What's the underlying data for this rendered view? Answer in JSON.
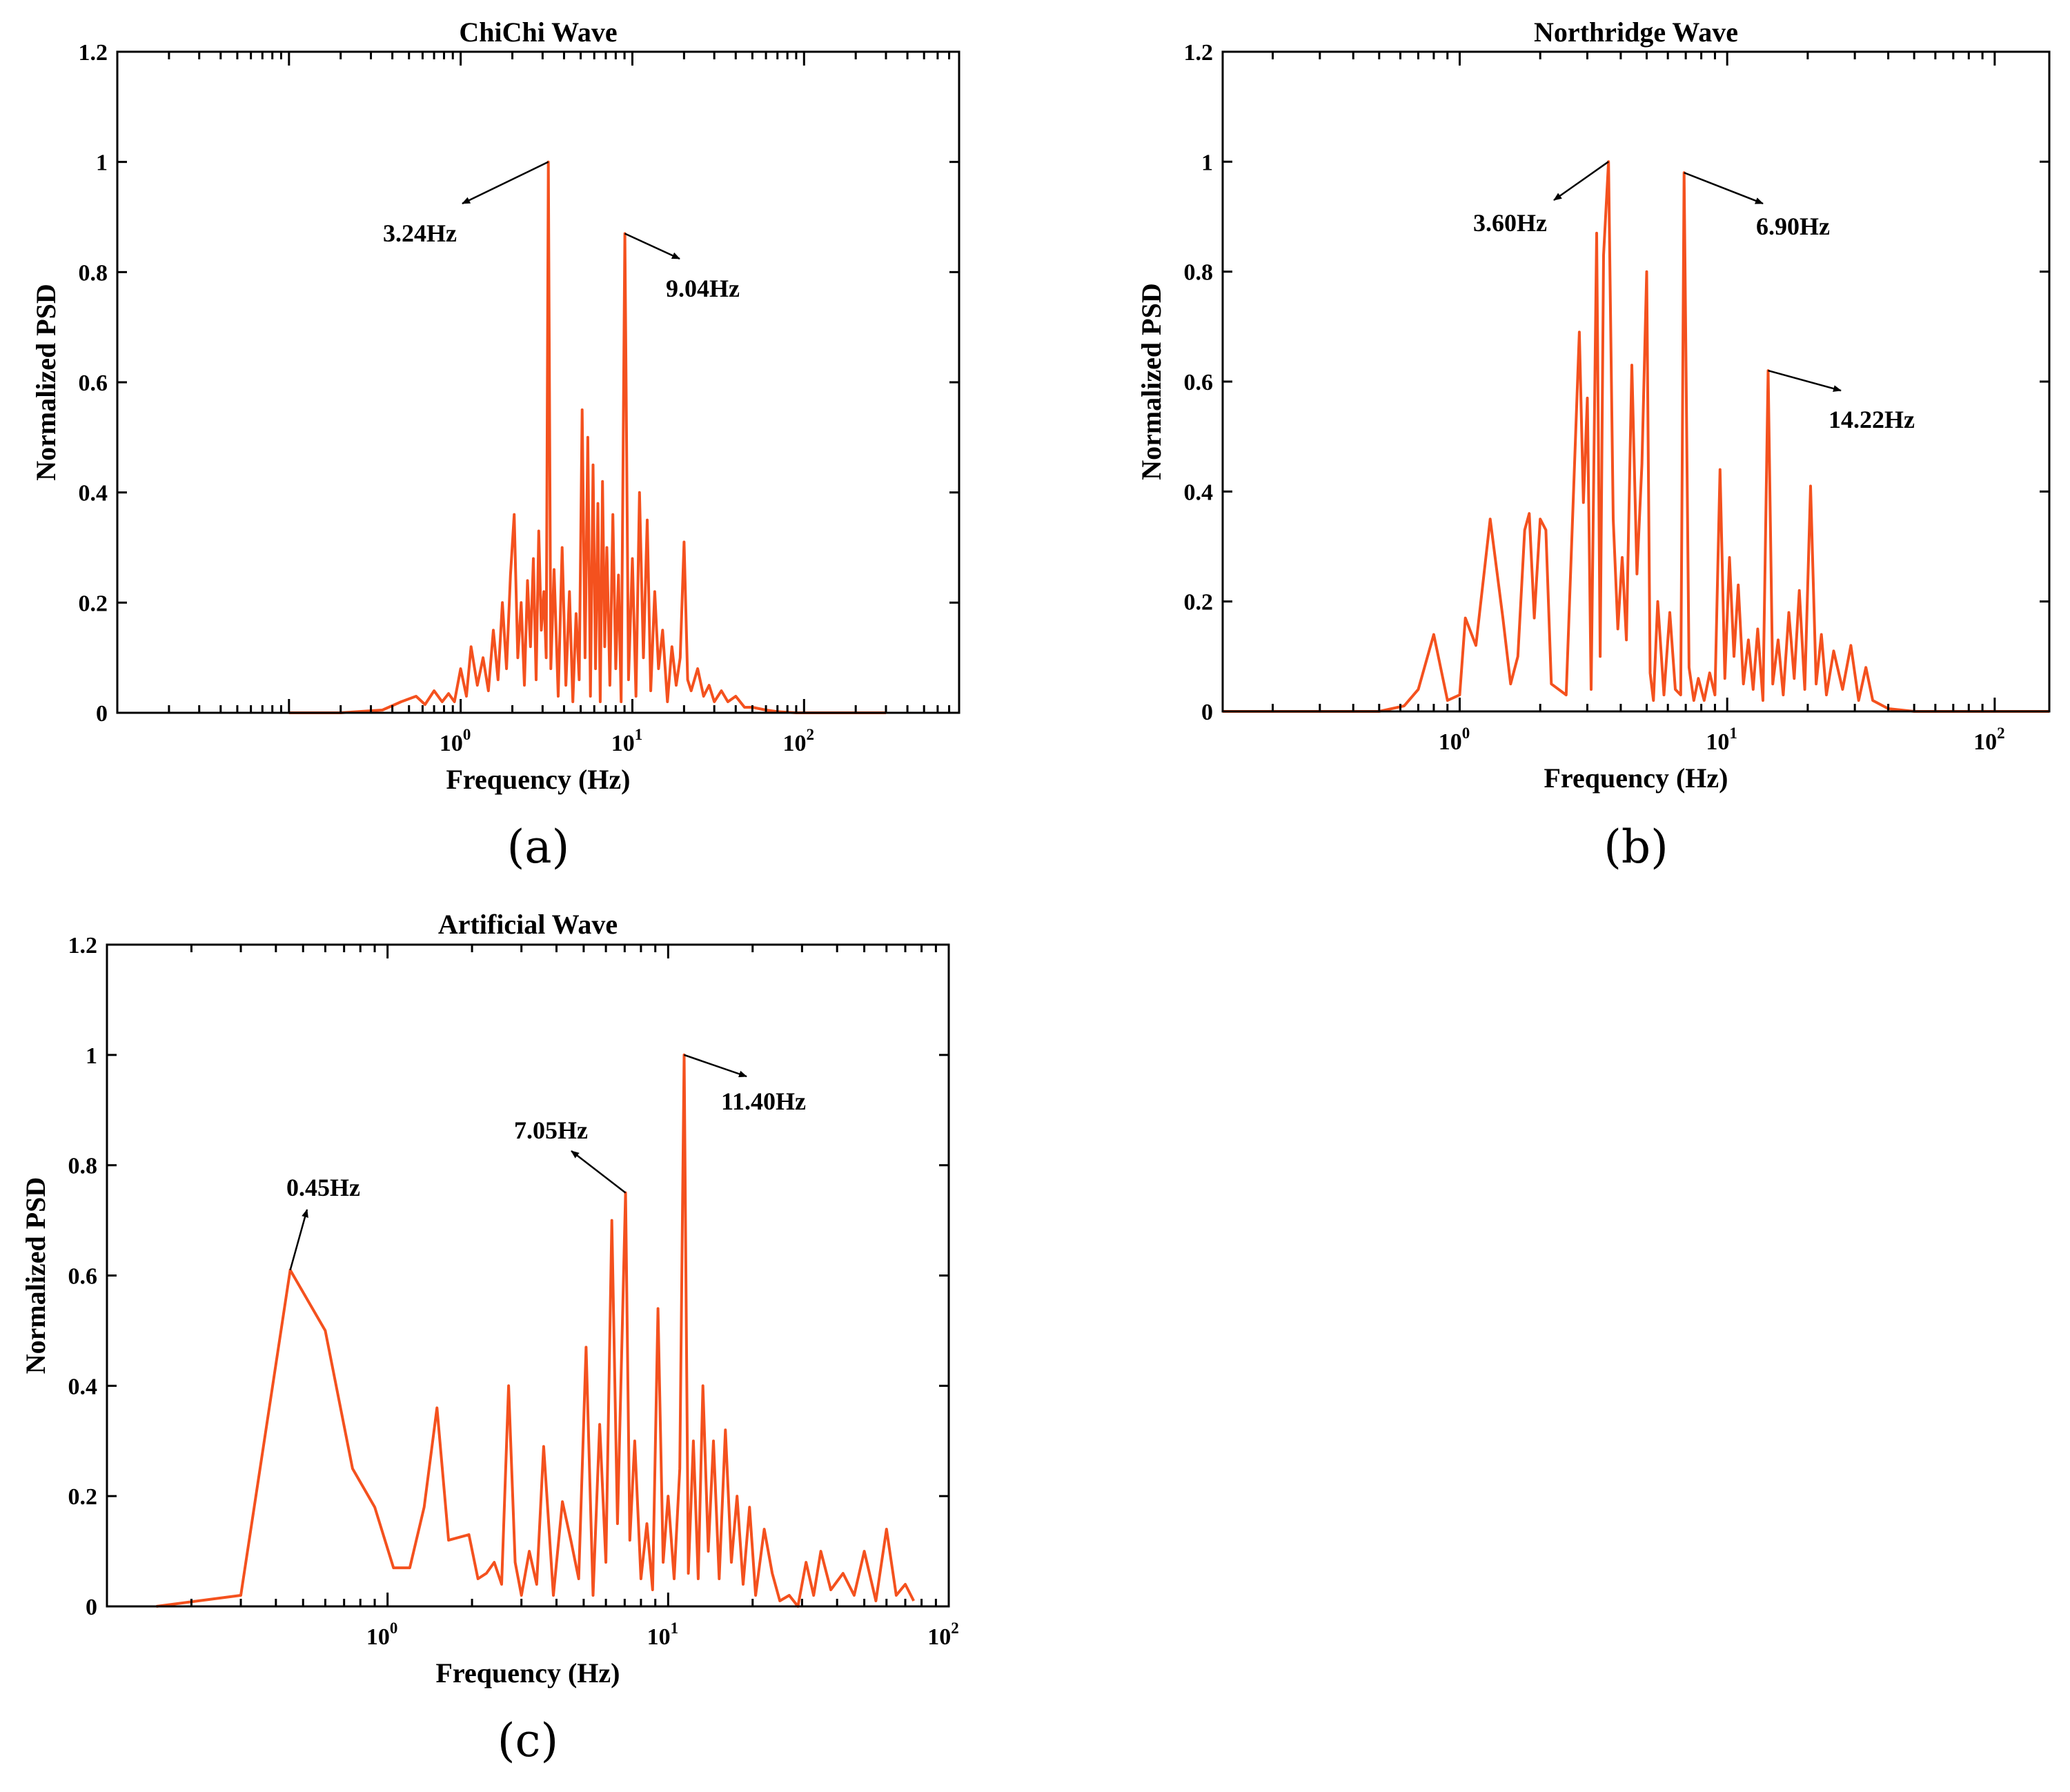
{
  "colors": {
    "series": "#F4511E",
    "axis": "#000000",
    "arrow": "#000000",
    "background": "#ffffff"
  },
  "chart_data": [
    {
      "type": "line",
      "panel_label": "(a)",
      "title": "ChiChi Wave",
      "xlabel": "Frequency (Hz)",
      "ylabel": "Normalized PSD",
      "xscale": "log",
      "xlim": [
        0.01,
        800
      ],
      "ylim": [
        0,
        1.2
      ],
      "yticks": [
        "0",
        "0.2",
        "0.4",
        "0.6",
        "0.8",
        "1",
        "1.2"
      ],
      "xtick_labels": [
        {
          "base": "10",
          "exp": "0",
          "value": 1
        },
        {
          "base": "10",
          "exp": "1",
          "value": 10
        },
        {
          "base": "10",
          "exp": "2",
          "value": 100
        }
      ],
      "series": [
        {
          "name": "ChiChi Wave",
          "x": [
            0.1,
            0.2,
            0.35,
            0.45,
            0.55,
            0.62,
            0.7,
            0.78,
            0.85,
            0.92,
            1.0,
            1.08,
            1.15,
            1.25,
            1.35,
            1.45,
            1.55,
            1.65,
            1.75,
            1.85,
            1.95,
            2.05,
            2.15,
            2.25,
            2.35,
            2.45,
            2.55,
            2.65,
            2.75,
            2.85,
            2.95,
            3.05,
            3.15,
            3.24,
            3.35,
            3.5,
            3.7,
            3.9,
            4.1,
            4.3,
            4.5,
            4.7,
            4.9,
            5.1,
            5.3,
            5.5,
            5.7,
            5.9,
            6.1,
            6.3,
            6.5,
            6.7,
            6.9,
            7.1,
            7.4,
            7.7,
            8.0,
            8.3,
            8.6,
            9.04,
            9.5,
            10.0,
            10.5,
            11.0,
            11.6,
            12.2,
            12.8,
            13.5,
            14.2,
            15.0,
            16.0,
            17.0,
            18.0,
            19.0,
            20.0,
            21.0,
            22.0,
            24.0,
            26.0,
            28.0,
            30.0,
            33.0,
            36.0,
            40.0,
            45.0,
            50.0,
            60.0,
            70.0,
            90.0,
            120.0,
            300.0
          ],
          "y": [
            0.0,
            0.0,
            0.005,
            0.02,
            0.03,
            0.015,
            0.04,
            0.02,
            0.035,
            0.02,
            0.08,
            0.03,
            0.12,
            0.05,
            0.1,
            0.04,
            0.15,
            0.06,
            0.2,
            0.08,
            0.25,
            0.36,
            0.1,
            0.2,
            0.05,
            0.24,
            0.12,
            0.28,
            0.06,
            0.33,
            0.15,
            0.22,
            0.1,
            1.0,
            0.08,
            0.26,
            0.03,
            0.3,
            0.05,
            0.22,
            0.02,
            0.18,
            0.06,
            0.55,
            0.1,
            0.5,
            0.03,
            0.45,
            0.08,
            0.38,
            0.02,
            0.42,
            0.12,
            0.3,
            0.05,
            0.36,
            0.08,
            0.25,
            0.02,
            0.87,
            0.06,
            0.28,
            0.03,
            0.4,
            0.1,
            0.35,
            0.04,
            0.22,
            0.08,
            0.15,
            0.02,
            0.12,
            0.05,
            0.1,
            0.31,
            0.06,
            0.04,
            0.08,
            0.03,
            0.05,
            0.02,
            0.04,
            0.02,
            0.03,
            0.01,
            0.01,
            0.005,
            0.002,
            0.0,
            0.0,
            0.0
          ]
        }
      ],
      "annotations": [
        {
          "text": "3.24Hz",
          "peak_x": 3.24,
          "peak_y": 1.0
        },
        {
          "text": "9.04Hz",
          "peak_x": 9.04,
          "peak_y": 0.87
        }
      ]
    },
    {
      "type": "line",
      "panel_label": "(b)",
      "title": "Northridge Wave",
      "xlabel": "Frequency (Hz)",
      "ylabel": "Normalized PSD",
      "xscale": "log",
      "xlim": [
        0.13,
        160
      ],
      "ylim": [
        0,
        1.2
      ],
      "yticks": [
        "0",
        "0.2",
        "0.4",
        "0.6",
        "0.8",
        "1",
        "1.2"
      ],
      "xtick_labels": [
        {
          "base": "10",
          "exp": "0",
          "value": 1
        },
        {
          "base": "10",
          "exp": "1",
          "value": 10
        },
        {
          "base": "10",
          "exp": "2",
          "value": 100
        }
      ],
      "series": [
        {
          "name": "Northridge Wave",
          "x": [
            0.13,
            0.5,
            0.62,
            0.7,
            0.8,
            0.9,
            1.0,
            1.05,
            1.15,
            1.3,
            1.45,
            1.55,
            1.65,
            1.75,
            1.82,
            1.9,
            2.0,
            2.1,
            2.2,
            2.5,
            2.8,
            2.9,
            3.0,
            3.1,
            3.25,
            3.35,
            3.45,
            3.6,
            3.75,
            3.9,
            4.05,
            4.2,
            4.4,
            4.6,
            4.8,
            5.0,
            5.15,
            5.3,
            5.5,
            5.8,
            6.1,
            6.4,
            6.7,
            6.9,
            7.2,
            7.5,
            7.8,
            8.2,
            8.6,
            9.0,
            9.4,
            9.8,
            10.2,
            10.6,
            11.0,
            11.5,
            12.0,
            12.5,
            13.0,
            13.6,
            14.22,
            14.8,
            15.5,
            16.2,
            17.0,
            17.8,
            18.6,
            19.5,
            20.5,
            21.5,
            22.5,
            23.5,
            25.0,
            27.0,
            29.0,
            31.0,
            33.0,
            35.0,
            40.0,
            50.0,
            160.0
          ],
          "y": [
            0.0,
            0.0,
            0.01,
            0.04,
            0.14,
            0.02,
            0.03,
            0.17,
            0.12,
            0.35,
            0.17,
            0.05,
            0.1,
            0.33,
            0.36,
            0.17,
            0.35,
            0.33,
            0.05,
            0.03,
            0.69,
            0.38,
            0.57,
            0.04,
            0.87,
            0.1,
            0.83,
            1.0,
            0.35,
            0.15,
            0.28,
            0.13,
            0.63,
            0.25,
            0.45,
            0.8,
            0.07,
            0.02,
            0.2,
            0.03,
            0.18,
            0.04,
            0.03,
            0.98,
            0.08,
            0.02,
            0.06,
            0.02,
            0.07,
            0.03,
            0.44,
            0.06,
            0.28,
            0.1,
            0.23,
            0.05,
            0.13,
            0.04,
            0.15,
            0.02,
            0.62,
            0.05,
            0.13,
            0.03,
            0.18,
            0.06,
            0.22,
            0.04,
            0.41,
            0.05,
            0.14,
            0.03,
            0.11,
            0.04,
            0.12,
            0.02,
            0.08,
            0.02,
            0.005,
            0.0,
            0.0
          ]
        }
      ],
      "annotations": [
        {
          "text": "3.60Hz",
          "peak_x": 3.6,
          "peak_y": 1.0
        },
        {
          "text": "6.90Hz",
          "peak_x": 6.9,
          "peak_y": 0.98
        },
        {
          "text": "14.22Hz",
          "peak_x": 14.22,
          "peak_y": 0.62
        }
      ]
    },
    {
      "type": "line",
      "panel_label": "(c)",
      "title": "Artificial Wave",
      "xlabel": "Frequency (Hz)",
      "ylabel": "Normalized PSD",
      "xscale": "log",
      "xlim": [
        0.1,
        100
      ],
      "ylim": [
        0,
        1.2
      ],
      "yticks": [
        "0",
        "0.2",
        "0.4",
        "0.6",
        "0.8",
        "1",
        "1.2"
      ],
      "xtick_labels": [
        {
          "base": "10",
          "exp": "0",
          "value": 1
        },
        {
          "base": "10",
          "exp": "1",
          "value": 10
        },
        {
          "base": "10",
          "exp": "2",
          "value": 100
        }
      ],
      "series": [
        {
          "name": "Artificial Wave",
          "x": [
            0.15,
            0.3,
            0.45,
            0.6,
            0.75,
            0.9,
            1.05,
            1.2,
            1.35,
            1.5,
            1.65,
            1.95,
            2.1,
            2.25,
            2.4,
            2.55,
            2.7,
            2.85,
            3.0,
            3.2,
            3.4,
            3.6,
            3.9,
            4.2,
            4.5,
            4.8,
            5.1,
            5.4,
            5.7,
            6.0,
            6.3,
            6.6,
            6.8,
            7.05,
            7.3,
            7.6,
            8.0,
            8.4,
            8.8,
            9.2,
            9.6,
            10.0,
            10.5,
            11.0,
            11.4,
            11.8,
            12.3,
            12.8,
            13.3,
            13.9,
            14.5,
            15.2,
            16.0,
            16.8,
            17.6,
            18.5,
            19.5,
            20.5,
            22.0,
            23.5,
            25.0,
            27.0,
            29.0,
            31.0,
            33.0,
            35.0,
            38.0,
            42.0,
            46.0,
            50.0,
            55.0,
            60.0,
            65.0,
            70.0,
            75.0
          ],
          "y": [
            0.0,
            0.02,
            0.61,
            0.5,
            0.25,
            0.18,
            0.07,
            0.07,
            0.18,
            0.36,
            0.12,
            0.13,
            0.05,
            0.06,
            0.08,
            0.04,
            0.4,
            0.08,
            0.02,
            0.1,
            0.04,
            0.29,
            0.02,
            0.19,
            0.12,
            0.05,
            0.47,
            0.02,
            0.33,
            0.08,
            0.7,
            0.15,
            0.42,
            0.75,
            0.12,
            0.3,
            0.05,
            0.15,
            0.03,
            0.54,
            0.08,
            0.2,
            0.05,
            0.25,
            1.0,
            0.06,
            0.3,
            0.05,
            0.4,
            0.1,
            0.3,
            0.05,
            0.32,
            0.08,
            0.2,
            0.04,
            0.18,
            0.02,
            0.14,
            0.06,
            0.01,
            0.02,
            0.0,
            0.08,
            0.02,
            0.1,
            0.03,
            0.06,
            0.02,
            0.1,
            0.01,
            0.14,
            0.02,
            0.04,
            0.01
          ]
        }
      ],
      "annotations": [
        {
          "text": "0.45Hz",
          "peak_x": 0.45,
          "peak_y": 0.61
        },
        {
          "text": "7.05Hz",
          "peak_x": 7.05,
          "peak_y": 0.75
        },
        {
          "text": "11.40Hz",
          "peak_x": 11.4,
          "peak_y": 1.0
        }
      ]
    }
  ]
}
